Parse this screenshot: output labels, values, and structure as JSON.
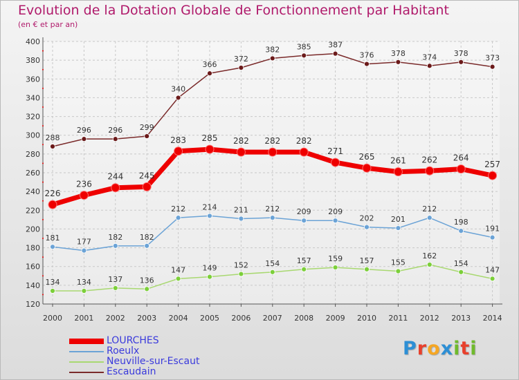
{
  "header": {
    "title": "Evolution de la Dotation Globale de Fonctionnement par Habitant",
    "subtitle": "(en € et par an)"
  },
  "logo": {
    "letters": [
      "P",
      "r",
      "o",
      "x",
      "i",
      "t",
      "i"
    ],
    "colors": [
      "#2d8fd5",
      "#e8402c",
      "#f5a623",
      "#2d8fd5",
      "#6fba2c",
      "#e8402c",
      "#6fba2c"
    ]
  },
  "chart_data": {
    "type": "line",
    "x": [
      "2000",
      "2001",
      "2002",
      "2003",
      "2004",
      "2005",
      "2006",
      "2007",
      "2008",
      "2009",
      "2010",
      "2011",
      "2012",
      "2013",
      "2014"
    ],
    "ylim": [
      120,
      400
    ],
    "yticks": [
      120,
      140,
      160,
      180,
      200,
      220,
      240,
      260,
      280,
      300,
      320,
      340,
      360,
      380,
      400
    ],
    "grid": true,
    "legend_position": "bottom-left",
    "series": [
      {
        "name": "LOURCHES",
        "color": "#ee0000",
        "marker": "#ee0000",
        "emphasis": true,
        "values": [
          226,
          236,
          244,
          245,
          283,
          285,
          282,
          282,
          282,
          271,
          265,
          261,
          262,
          264,
          257
        ]
      },
      {
        "name": "Roeulx",
        "color": "#6ba3d6",
        "marker": "#6ba3d6",
        "emphasis": false,
        "values": [
          181,
          177,
          182,
          182,
          212,
          214,
          211,
          212,
          209,
          209,
          202,
          201,
          212,
          198,
          191
        ]
      },
      {
        "name": "Neuville-sur-Escaut",
        "color": "#a8d870",
        "marker": "#7ccf3a",
        "emphasis": false,
        "values": [
          134,
          134,
          137,
          136,
          147,
          149,
          152,
          154,
          157,
          159,
          157,
          155,
          162,
          154,
          147
        ]
      },
      {
        "name": "Escaudain",
        "color": "#7a2a2a",
        "marker": "#6b1a1a",
        "emphasis": false,
        "values": [
          288,
          296,
          296,
          299,
          340,
          366,
          372,
          382,
          385,
          387,
          376,
          378,
          374,
          378,
          373
        ]
      }
    ]
  }
}
